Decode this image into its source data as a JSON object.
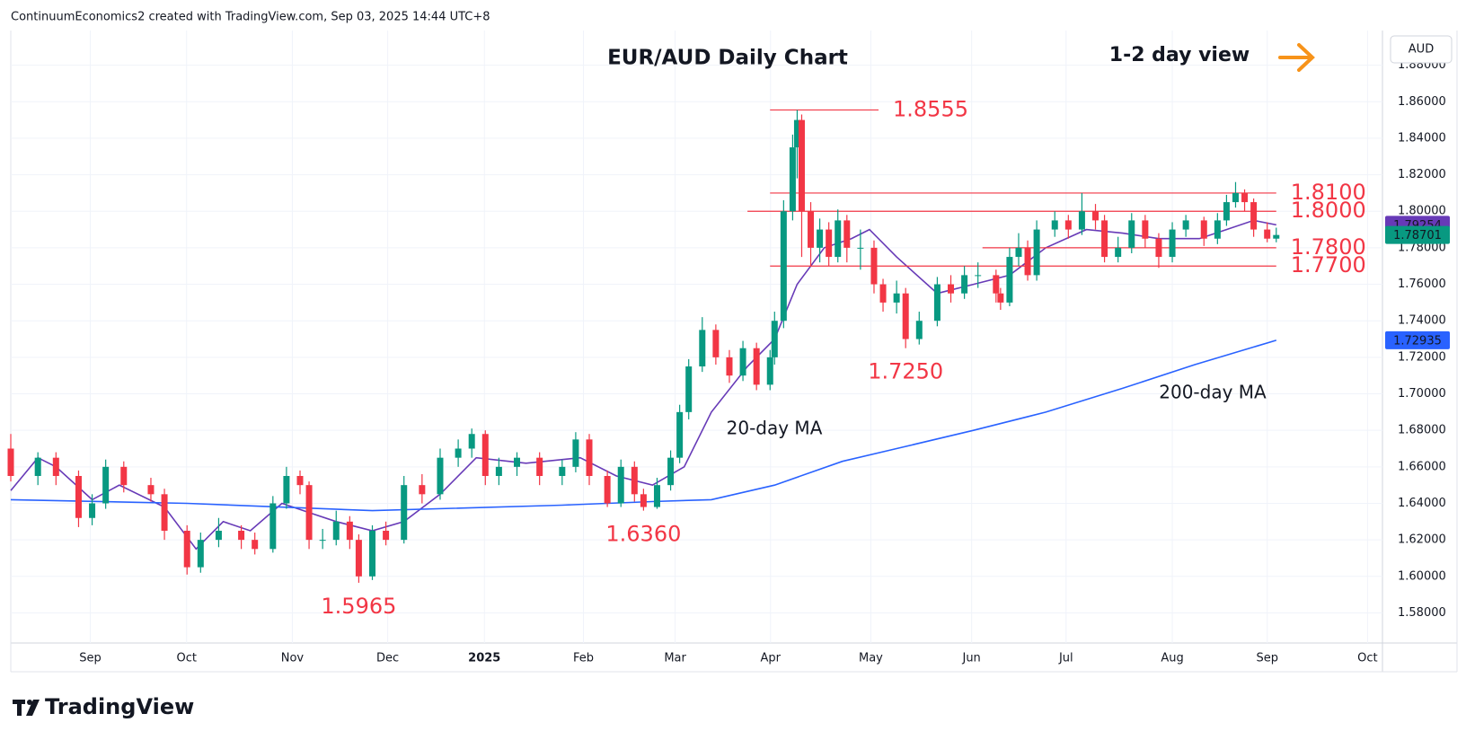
{
  "header": "ContinuumEconomics2 created with TradingView.com, Sep 03, 2025 14:44 UTC+8",
  "brand": "TradingView",
  "chart_data": {
    "type": "candlestick",
    "title": "EUR/AUD Daily Chart",
    "view": "1-2 day view",
    "currency": "AUD",
    "up_color": "#089981",
    "down_color": "#f23645",
    "grid": true,
    "x": [
      0,
      6,
      10,
      15,
      18,
      21,
      25,
      31,
      34,
      39,
      42,
      46,
      51,
      54,
      58,
      61,
      64,
      66,
      69,
      72,
      75,
      77,
      80,
      83,
      87,
      91,
      95,
      99,
      102,
      105,
      108,
      112,
      117,
      122,
      125,
      128,
      132,
      135,
      138,
      140,
      143,
      146,
      148,
      150,
      153,
      156,
      159,
      162,
      165,
      168,
      169,
      171,
      173,
      174,
      175,
      177,
      179,
      181,
      183,
      185,
      188,
      191,
      193,
      196,
      198,
      201,
      205,
      208,
      211,
      214,
      218,
      219,
      221,
      223,
      225,
      227,
      231,
      234,
      237,
      240,
      242,
      245,
      248,
      251,
      254,
      257,
      260,
      264,
      267,
      269,
      271,
      273,
      275,
      278,
      280
    ],
    "open": [
      1.67,
      1.655,
      1.665,
      1.655,
      1.632,
      1.64,
      1.66,
      1.65,
      1.645,
      1.625,
      1.605,
      1.62,
      1.625,
      1.62,
      1.615,
      1.64,
      1.655,
      1.65,
      1.62,
      1.62,
      1.63,
      1.62,
      1.6,
      1.625,
      1.62,
      1.65,
      1.645,
      1.665,
      1.67,
      1.678,
      1.655,
      1.66,
      1.665,
      1.655,
      1.66,
      1.675,
      1.655,
      1.64,
      1.66,
      1.645,
      1.638,
      1.65,
      1.665,
      1.69,
      1.715,
      1.735,
      1.72,
      1.71,
      1.725,
      1.705,
      1.72,
      1.74,
      1.8,
      1.835,
      1.85,
      1.8,
      1.78,
      1.79,
      1.775,
      1.795,
      1.78,
      1.78,
      1.76,
      1.75,
      1.755,
      1.73,
      1.74,
      1.76,
      1.755,
      1.765,
      1.765,
      1.755,
      1.75,
      1.775,
      1.78,
      1.765,
      1.79,
      1.795,
      1.79,
      1.8,
      1.795,
      1.775,
      1.78,
      1.795,
      1.785,
      1.775,
      1.79,
      1.795,
      1.785,
      1.795,
      1.805,
      1.81,
      1.805,
      1.79,
      1.785
    ],
    "high": [
      1.678,
      1.668,
      1.668,
      1.658,
      1.645,
      1.664,
      1.663,
      1.654,
      1.648,
      1.628,
      1.624,
      1.632,
      1.628,
      1.624,
      1.644,
      1.66,
      1.658,
      1.652,
      1.626,
      1.636,
      1.633,
      1.623,
      1.628,
      1.63,
      1.655,
      1.656,
      1.67,
      1.675,
      1.681,
      1.68,
      1.665,
      1.668,
      1.668,
      1.664,
      1.679,
      1.678,
      1.658,
      1.664,
      1.663,
      1.648,
      1.654,
      1.669,
      1.694,
      1.719,
      1.742,
      1.738,
      1.724,
      1.729,
      1.728,
      1.724,
      1.745,
      1.806,
      1.842,
      1.8555,
      1.853,
      1.805,
      1.796,
      1.794,
      1.801,
      1.798,
      1.79,
      1.784,
      1.763,
      1.762,
      1.758,
      1.745,
      1.764,
      1.765,
      1.77,
      1.772,
      1.768,
      1.758,
      1.78,
      1.788,
      1.784,
      1.795,
      1.8,
      1.798,
      1.81,
      1.804,
      1.798,
      1.786,
      1.799,
      1.798,
      1.788,
      1.794,
      1.798,
      1.797,
      1.799,
      1.809,
      1.816,
      1.812,
      1.807,
      1.794,
      1.791
    ],
    "low": [
      1.652,
      1.65,
      1.65,
      1.627,
      1.628,
      1.637,
      1.646,
      1.641,
      1.62,
      1.601,
      1.602,
      1.616,
      1.615,
      1.612,
      1.613,
      1.637,
      1.645,
      1.615,
      1.615,
      1.617,
      1.615,
      1.5965,
      1.598,
      1.617,
      1.618,
      1.64,
      1.642,
      1.66,
      1.665,
      1.65,
      1.65,
      1.655,
      1.65,
      1.65,
      1.657,
      1.65,
      1.638,
      1.638,
      1.641,
      1.636,
      1.637,
      1.647,
      1.662,
      1.686,
      1.712,
      1.716,
      1.706,
      1.707,
      1.702,
      1.702,
      1.716,
      1.736,
      1.795,
      1.818,
      1.775,
      1.77,
      1.772,
      1.77,
      1.772,
      1.772,
      1.768,
      1.755,
      1.745,
      1.744,
      1.725,
      1.727,
      1.737,
      1.75,
      1.752,
      1.758,
      1.75,
      1.746,
      1.748,
      1.77,
      1.762,
      1.762,
      1.786,
      1.785,
      1.787,
      1.79,
      1.772,
      1.772,
      1.777,
      1.78,
      1.769,
      1.772,
      1.786,
      1.781,
      1.782,
      1.792,
      1.802,
      1.8,
      1.786,
      1.783,
      1.783
    ],
    "close": [
      1.655,
      1.665,
      1.655,
      1.632,
      1.64,
      1.66,
      1.65,
      1.645,
      1.625,
      1.605,
      1.62,
      1.625,
      1.62,
      1.615,
      1.64,
      1.655,
      1.65,
      1.62,
      1.62,
      1.63,
      1.62,
      1.6,
      1.625,
      1.62,
      1.65,
      1.645,
      1.665,
      1.67,
      1.678,
      1.655,
      1.66,
      1.665,
      1.655,
      1.66,
      1.675,
      1.655,
      1.64,
      1.66,
      1.645,
      1.638,
      1.65,
      1.665,
      1.69,
      1.715,
      1.735,
      1.72,
      1.71,
      1.725,
      1.705,
      1.72,
      1.74,
      1.8,
      1.835,
      1.85,
      1.8,
      1.78,
      1.79,
      1.775,
      1.795,
      1.78,
      1.78,
      1.76,
      1.75,
      1.755,
      1.73,
      1.74,
      1.76,
      1.755,
      1.765,
      1.765,
      1.755,
      1.75,
      1.775,
      1.78,
      1.765,
      1.79,
      1.795,
      1.79,
      1.8,
      1.795,
      1.775,
      1.78,
      1.795,
      1.785,
      1.775,
      1.79,
      1.795,
      1.785,
      1.795,
      1.805,
      1.81,
      1.805,
      1.79,
      1.785,
      1.78701
    ],
    "moving_averages": [
      {
        "name": "20-day MA",
        "color": "#673ab7",
        "x": [
          0,
          6,
          10,
          18,
          24,
          34,
          41,
          47,
          53,
          60,
          66,
          72,
          80,
          87,
          95,
          103,
          114,
          126,
          134,
          142,
          149,
          155,
          163,
          169,
          174,
          180,
          186,
          190,
          196,
          205,
          213,
          221,
          229,
          238,
          246,
          254,
          263,
          269,
          275,
          280
        ],
        "values": [
          1.647,
          1.665,
          1.66,
          1.642,
          1.65,
          1.638,
          1.615,
          1.63,
          1.625,
          1.64,
          1.635,
          1.63,
          1.625,
          1.63,
          1.645,
          1.665,
          1.662,
          1.665,
          1.655,
          1.65,
          1.66,
          1.69,
          1.715,
          1.73,
          1.76,
          1.78,
          1.785,
          1.79,
          1.775,
          1.755,
          1.76,
          1.765,
          1.78,
          1.79,
          1.788,
          1.785,
          1.785,
          1.79,
          1.795,
          1.79254
        ]
      },
      {
        "name": "200-day MA",
        "color": "#2962ff",
        "x": [
          0,
          39,
          80,
          122,
          142,
          155,
          169,
          184,
          196,
          213,
          229,
          246,
          262,
          280
        ],
        "values": [
          1.642,
          1.64,
          1.636,
          1.639,
          1.641,
          1.642,
          1.65,
          1.663,
          1.67,
          1.68,
          1.69,
          1.703,
          1.716,
          1.72935
        ]
      }
    ],
    "levels": [
      {
        "value": 1.8555,
        "label": "1.8555",
        "x": [
          168,
          192
        ]
      },
      {
        "value": 1.81,
        "label": "1.8100",
        "x": [
          168,
          280
        ]
      },
      {
        "value": 1.8,
        "label": "1.8000",
        "x": [
          163,
          280
        ]
      },
      {
        "value": 1.78,
        "label": "1.7800",
        "x": [
          215,
          280
        ]
      },
      {
        "value": 1.77,
        "label": "1.7700",
        "x": [
          168,
          280
        ]
      }
    ],
    "level_color": "#f23645",
    "lows": [
      {
        "value": 1.5965,
        "label": "1.5965",
        "x": 77
      },
      {
        "value": 1.636,
        "label": "1.6360",
        "x": 140
      },
      {
        "value": 1.725,
        "label": "1.7250",
        "x": 198
      }
    ],
    "xlim": [
      0,
      303.5
    ],
    "xticks": [
      {
        "value": 17.6,
        "label": "Sep"
      },
      {
        "value": 38.9,
        "label": "Oct"
      },
      {
        "value": 62.3,
        "label": "Nov"
      },
      {
        "value": 83.4,
        "label": "Dec"
      },
      {
        "value": 104.8,
        "label": "2025"
      },
      {
        "value": 126.7,
        "label": "Feb"
      },
      {
        "value": 147,
        "label": "Mar"
      },
      {
        "value": 168.1,
        "label": "Apr"
      },
      {
        "value": 190.3,
        "label": "May"
      },
      {
        "value": 212.6,
        "label": "Jun"
      },
      {
        "value": 233.5,
        "label": "Jul"
      },
      {
        "value": 257,
        "label": "Aug"
      },
      {
        "value": 278,
        "label": "Sep"
      },
      {
        "value": 300.2,
        "label": "Oct"
      }
    ],
    "ylim": [
      1.5635,
      1.899
    ],
    "yticks": [
      {
        "value": 1.58,
        "label": "1.58000"
      },
      {
        "value": 1.6,
        "label": "1.60000"
      },
      {
        "value": 1.62,
        "label": "1.62000"
      },
      {
        "value": 1.64,
        "label": "1.64000"
      },
      {
        "value": 1.66,
        "label": "1.66000"
      },
      {
        "value": 1.68,
        "label": "1.68000"
      },
      {
        "value": 1.7,
        "label": "1.70000"
      },
      {
        "value": 1.72,
        "label": "1.72000"
      },
      {
        "value": 1.74,
        "label": "1.74000"
      },
      {
        "value": 1.76,
        "label": "1.76000"
      },
      {
        "value": 1.78,
        "label": "1.78000"
      },
      {
        "value": 1.8,
        "label": "1.80000"
      },
      {
        "value": 1.82,
        "label": "1.82000"
      },
      {
        "value": 1.84,
        "label": "1.84000"
      },
      {
        "value": 1.86,
        "label": "1.86000"
      },
      {
        "value": 1.88,
        "label": "1.88000"
      }
    ]
  }
}
